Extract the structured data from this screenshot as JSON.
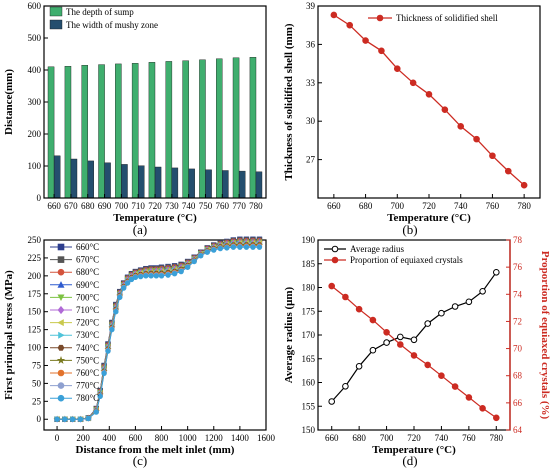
{
  "chart_data": [
    {
      "panel_label": "(a)",
      "type": "bar",
      "xlabel": "Temperature (°C)",
      "ylabel": "Distance(mm)",
      "categories": [
        "660",
        "670",
        "680",
        "690",
        "700",
        "710",
        "720",
        "730",
        "740",
        "750",
        "760",
        "770",
        "780"
      ],
      "ylim": [
        0,
        600
      ],
      "yticks": [
        0,
        100,
        200,
        300,
        400,
        500,
        600
      ],
      "legend_position": "top-left",
      "grid": false,
      "series": [
        {
          "name": "The depth of sump",
          "color": "#3fae6e",
          "values": [
            410,
            412,
            415,
            417,
            419,
            421,
            424,
            427,
            429,
            432,
            435,
            438,
            440
          ]
        },
        {
          "name": "The width of mushy zone",
          "color": "#244e6e",
          "values": [
            132,
            122,
            116,
            110,
            105,
            101,
            97,
            94,
            91,
            88,
            86,
            84,
            82
          ]
        }
      ]
    },
    {
      "panel_label": "(b)",
      "type": "line",
      "xlabel": "Temperature (°C)",
      "ylabel": "Thickness of solidified shell (mm)",
      "xlim": [
        650,
        790
      ],
      "xticks": [
        660,
        680,
        700,
        720,
        740,
        760,
        780
      ],
      "ylim": [
        24,
        39
      ],
      "yticks": [
        27,
        30,
        33,
        36,
        39
      ],
      "legend_position": "top-right",
      "grid": false,
      "series": [
        {
          "name": "Thickness of solidified shell",
          "color": "#cc2b22",
          "x": [
            660,
            670,
            680,
            690,
            700,
            710,
            720,
            730,
            740,
            750,
            760,
            770,
            780
          ],
          "y": [
            38.3,
            37.5,
            36.3,
            35.5,
            34.1,
            33.0,
            32.1,
            30.9,
            29.6,
            28.6,
            27.3,
            26.1,
            25.0
          ]
        }
      ]
    },
    {
      "panel_label": "(c)",
      "type": "line",
      "xlabel": "Distance from the melt inlet (mm)",
      "ylabel": "First principal stress (MPa)",
      "xlim": [
        -100,
        1600
      ],
      "xticks": [
        0,
        200,
        400,
        600,
        800,
        1000,
        1200,
        1400,
        1600
      ],
      "ylim": [
        -15,
        250
      ],
      "yticks": [
        0,
        25,
        50,
        75,
        100,
        125,
        150,
        175,
        200,
        225,
        250
      ],
      "legend_position": "top-left",
      "grid": false,
      "series": [
        {
          "name": "660°C",
          "color": "#2d3e8e",
          "marker": "square"
        },
        {
          "name": "670°C",
          "color": "#555555",
          "marker": "square"
        },
        {
          "name": "680°C",
          "color": "#d4533c",
          "marker": "circle"
        },
        {
          "name": "690°C",
          "color": "#2e5bcf",
          "marker": "triangle"
        },
        {
          "name": "700°C",
          "color": "#7dc242",
          "marker": "triangle-down"
        },
        {
          "name": "710°C",
          "color": "#b06ad6",
          "marker": "diamond"
        },
        {
          "name": "720°C",
          "color": "#c9c94d",
          "marker": "triangle-left"
        },
        {
          "name": "730°C",
          "color": "#4fc3d9",
          "marker": "triangle-right"
        },
        {
          "name": "740°C",
          "color": "#7a4a2b",
          "marker": "hexagon"
        },
        {
          "name": "750°C",
          "color": "#7a7a20",
          "marker": "star"
        },
        {
          "name": "760°C",
          "color": "#e2722b",
          "marker": "circle"
        },
        {
          "name": "770°C",
          "color": "#8ea0d0",
          "marker": "circle"
        },
        {
          "name": "780°C",
          "color": "#3aa0d8",
          "marker": "circle"
        }
      ],
      "x": [
        0,
        60,
        120,
        180,
        240,
        300,
        330,
        360,
        390,
        420,
        450,
        480,
        510,
        540,
        570,
        600,
        640,
        680,
        720,
        760,
        800,
        850,
        900,
        950,
        1000,
        1050,
        1100,
        1150,
        1200,
        1250,
        1300,
        1350,
        1400,
        1450,
        1500,
        1550
      ],
      "y_high": [
        0,
        0,
        0,
        0,
        2,
        15,
        40,
        75,
        105,
        135,
        160,
        178,
        190,
        198,
        203,
        206,
        208,
        210,
        211,
        211,
        212,
        213,
        214,
        216,
        220,
        226,
        233,
        239,
        243,
        246,
        248,
        250,
        251,
        251,
        251,
        251
      ],
      "y_low": [
        0,
        0,
        0,
        0,
        1,
        10,
        32,
        64,
        95,
        125,
        150,
        170,
        183,
        190,
        195,
        198,
        199,
        200,
        200,
        200,
        200,
        201,
        203,
        206,
        212,
        220,
        228,
        233,
        236,
        238,
        239,
        240,
        240,
        240,
        240,
        240
      ]
    },
    {
      "panel_label": "(d)",
      "type": "line",
      "xlabel": "Temperature (°C)",
      "ylabel": "Average radius (μm)",
      "ylabel_right": "Proportion of equiaxed crystals (%)",
      "xlim": [
        650,
        790
      ],
      "xticks": [
        660,
        680,
        700,
        720,
        740,
        760,
        780
      ],
      "ylim": [
        150,
        190
      ],
      "yticks": [
        150,
        155,
        160,
        165,
        170,
        175,
        180,
        185,
        190
      ],
      "ylim_right": [
        64,
        78
      ],
      "yticks_right": [
        64,
        66,
        68,
        70,
        72,
        74,
        76,
        78
      ],
      "legend_position": "top-left",
      "grid": false,
      "series": [
        {
          "name": "Average radius",
          "color": "#000000",
          "axis": "left",
          "x": [
            660,
            670,
            680,
            690,
            700,
            710,
            720,
            730,
            740,
            750,
            760,
            770,
            780
          ],
          "y": [
            156.0,
            159.2,
            163.4,
            166.8,
            168.4,
            169.6,
            169.0,
            172.4,
            174.6,
            176.0,
            177.0,
            179.2,
            183.2
          ]
        },
        {
          "name": "Proportion of equiaxed crystals",
          "color": "#cc2b22",
          "axis": "right",
          "x": [
            660,
            670,
            680,
            690,
            700,
            710,
            720,
            730,
            740,
            750,
            760,
            770,
            780
          ],
          "y": [
            74.6,
            73.8,
            72.9,
            72.1,
            71.2,
            70.3,
            69.5,
            68.8,
            68.0,
            67.2,
            66.4,
            65.6,
            64.9
          ]
        }
      ]
    }
  ]
}
